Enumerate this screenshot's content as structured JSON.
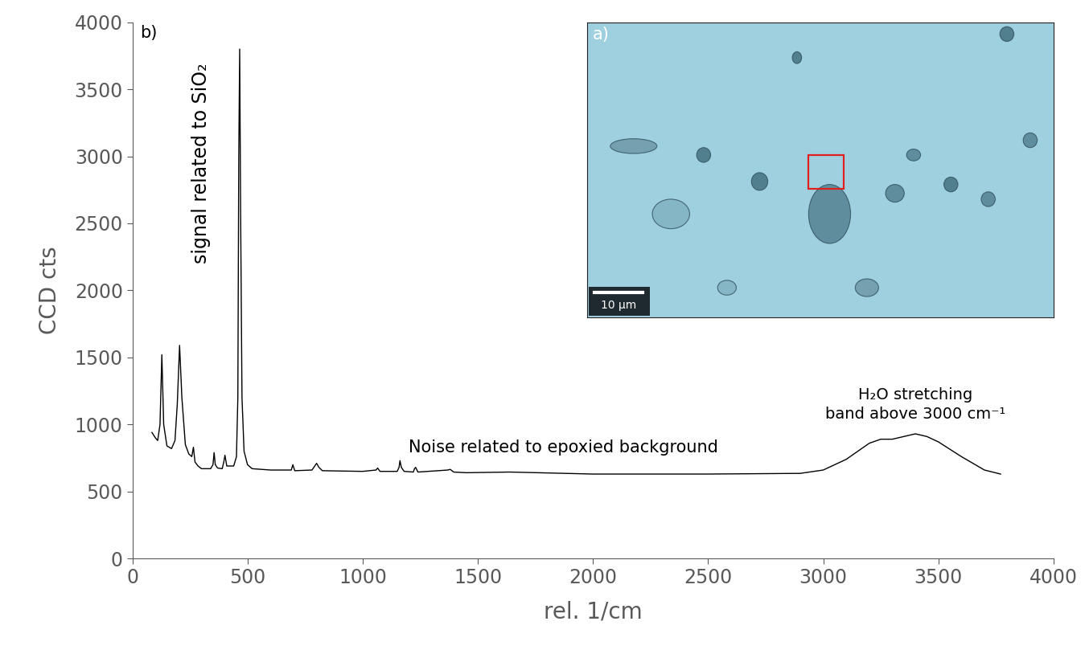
{
  "chart_data": {
    "type": "line",
    "panel_label": "b)",
    "xlabel": "rel. 1/cm",
    "ylabel": "CCD cts",
    "color": "#000000",
    "xlim": [
      0,
      4000
    ],
    "xticks": [
      0,
      500,
      1000,
      1500,
      2000,
      2500,
      3000,
      3500,
      4000
    ],
    "ylim": [
      0,
      4000
    ],
    "yticks": [
      0,
      500,
      1000,
      1500,
      2000,
      2500,
      3000,
      3500,
      4000
    ],
    "grid": false,
    "x": [
      85,
      100,
      110,
      120,
      128,
      136,
      150,
      170,
      185,
      195,
      205,
      215,
      230,
      245,
      258,
      265,
      272,
      285,
      300,
      340,
      350,
      355,
      360,
      370,
      390,
      397,
      402,
      410,
      440,
      452,
      458,
      462,
      466,
      470,
      476,
      485,
      500,
      520,
      600,
      690,
      697,
      705,
      780,
      792,
      800,
      810,
      825,
      1000,
      1058,
      1065,
      1075,
      1150,
      1158,
      1162,
      1168,
      1180,
      1220,
      1225,
      1230,
      1240,
      1370,
      1380,
      1395,
      1450,
      1640,
      2000,
      2500,
      2900,
      3000,
      3100,
      3200,
      3250,
      3300,
      3350,
      3400,
      3450,
      3500,
      3600,
      3700,
      3770
    ],
    "values": [
      940,
      900,
      880,
      1000,
      1520,
      1000,
      840,
      820,
      880,
      1150,
      1590,
      1200,
      850,
      780,
      760,
      830,
      720,
      690,
      670,
      670,
      700,
      790,
      700,
      675,
      670,
      720,
      770,
      690,
      690,
      760,
      1200,
      3000,
      3800,
      2600,
      1200,
      800,
      700,
      670,
      660,
      660,
      700,
      655,
      660,
      690,
      710,
      680,
      655,
      650,
      660,
      675,
      650,
      650,
      680,
      730,
      680,
      650,
      645,
      670,
      680,
      645,
      660,
      665,
      645,
      640,
      645,
      630,
      630,
      635,
      660,
      740,
      860,
      890,
      890,
      910,
      930,
      910,
      870,
      760,
      660,
      630
    ],
    "annotations": [
      "signal related to SiO₂",
      "Noise related to epoxied background",
      "H₂O stretching\nband above 3000 cm⁻¹"
    ],
    "inset": {
      "label": "a)",
      "scale_bar": "10 µm"
    }
  }
}
